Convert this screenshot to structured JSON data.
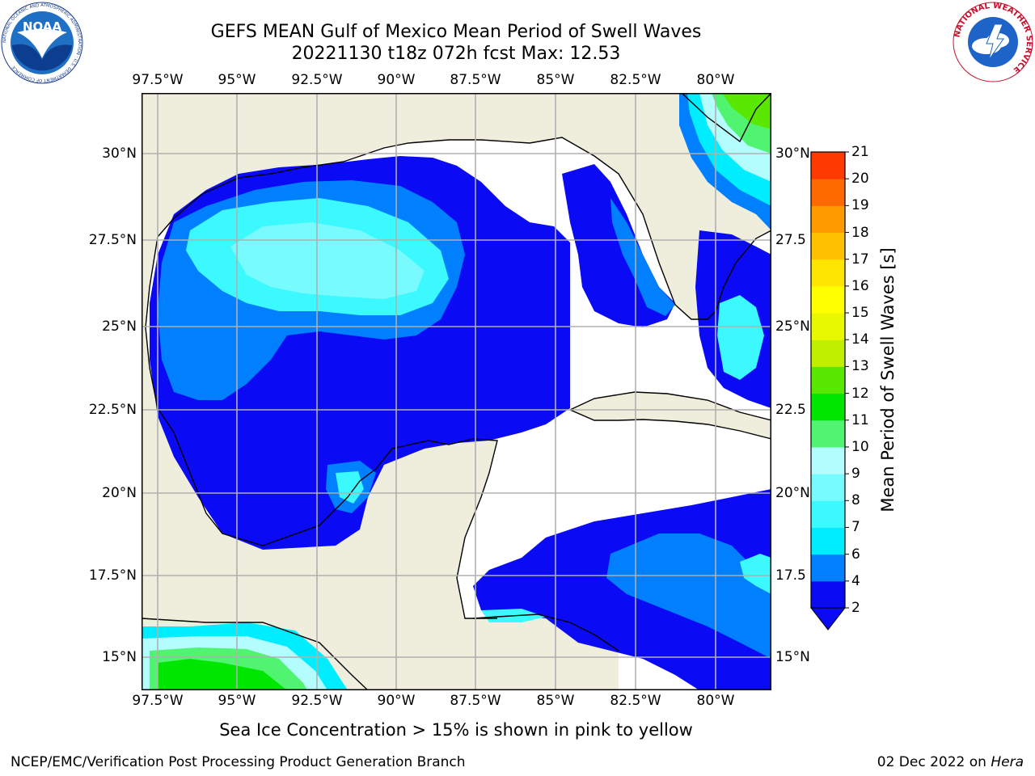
{
  "header": {
    "title_line1": "GEFS MEAN Gulf of Mexico Mean Period of Swell Waves",
    "title_line2": "20221130 t18z 072h fcst   Max: 12.53"
  },
  "map": {
    "lon_ticks": [
      "97.5°W",
      "95°W",
      "92.5°W",
      "90°W",
      "87.5°W",
      "85°W",
      "82.5°W",
      "80°W"
    ],
    "lat_ticks_left": [
      "30°N",
      "27.5°N",
      "25°N",
      "22.5°N",
      "20°N",
      "17.5°N",
      "15°N"
    ],
    "lat_ticks_right": [
      "30°N",
      "27.5",
      "25°N",
      "22.5",
      "20°N",
      "17.5",
      "15°N"
    ],
    "colors": {
      "land": "#efeedd",
      "no_data": "#ffffff",
      "grid": "#b0b0b0",
      "coast": "#000000"
    }
  },
  "colorbar": {
    "label": "Mean Period of Swell Waves [s]",
    "ticks": [
      "2",
      "4",
      "6",
      "7",
      "8",
      "9",
      "10",
      "11",
      "12",
      "13",
      "14",
      "15",
      "16",
      "17",
      "18",
      "19",
      "20",
      "21"
    ],
    "colors": [
      "#0a0af5",
      "#0080ff",
      "#00ecff",
      "#3cf8ff",
      "#78fbff",
      "#b4fdff",
      "#50f470",
      "#00e600",
      "#5ae800",
      "#c0f000",
      "#e8f800",
      "#ffff00",
      "#ffe600",
      "#ffc000",
      "#ff9a00",
      "#ff6a00",
      "#ff3a00",
      "#ff0000"
    ]
  },
  "note": "Sea Ice Concentration > 15% is shown in pink to yellow",
  "footer": {
    "left": "NCEP/EMC/Verification Post Processing Product Generation Branch",
    "date": "02 Dec 2022 on ",
    "host": "Hera"
  },
  "logos": {
    "noaa_text": "NOAA",
    "noaa_ring": "NATIONAL OCEANIC AND ATMOSPHERIC ADMINISTRATION · U.S. DEPARTMENT OF COMMERCE",
    "nws_ring": "NATIONAL WEATHER SERVICE"
  }
}
